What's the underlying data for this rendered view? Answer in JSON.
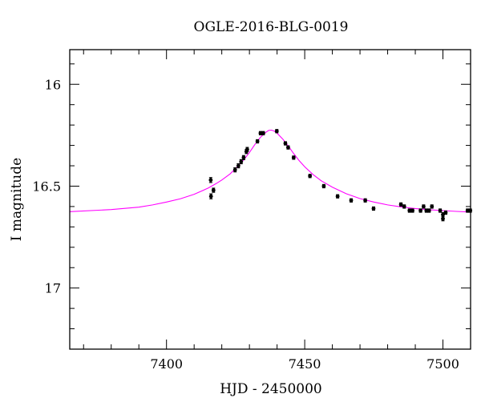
{
  "chart_data": {
    "type": "scatter",
    "title": "OGLE-2016-BLG-0019",
    "xlabel": "HJD - 2450000",
    "ylabel": "I magnitude",
    "xlim": [
      7365,
      7510
    ],
    "ylim": [
      17.3,
      15.83
    ],
    "y_inverted": true,
    "x_ticks": [
      7400,
      7450,
      7500
    ],
    "y_ticks": [
      16,
      16.5,
      17
    ],
    "x_minor_step": 10,
    "y_minor_step": 0.1,
    "grid": false,
    "legend": "none",
    "series": [
      {
        "style": "points-with-errorbars",
        "color": "#000000",
        "points": [
          {
            "x": 7416.0,
            "y": 16.47,
            "err": 0.012
          },
          {
            "x": 7416.1,
            "y": 16.55,
            "err": 0.012
          },
          {
            "x": 7417.0,
            "y": 16.52,
            "err": 0.01
          },
          {
            "x": 7424.8,
            "y": 16.42,
            "err": 0.01
          },
          {
            "x": 7426.0,
            "y": 16.4,
            "err": 0.01
          },
          {
            "x": 7427.0,
            "y": 16.38,
            "err": 0.01
          },
          {
            "x": 7427.9,
            "y": 16.36,
            "err": 0.01
          },
          {
            "x": 7428.9,
            "y": 16.33,
            "err": 0.01
          },
          {
            "x": 7429.2,
            "y": 16.32,
            "err": 0.01
          },
          {
            "x": 7432.9,
            "y": 16.28,
            "err": 0.008
          },
          {
            "x": 7434.0,
            "y": 16.24,
            "err": 0.008
          },
          {
            "x": 7435.0,
            "y": 16.24,
            "err": 0.008
          },
          {
            "x": 7439.9,
            "y": 16.23,
            "err": 0.008
          },
          {
            "x": 7443.0,
            "y": 16.29,
            "err": 0.008
          },
          {
            "x": 7444.0,
            "y": 16.31,
            "err": 0.008
          },
          {
            "x": 7446.0,
            "y": 16.36,
            "err": 0.008
          },
          {
            "x": 7451.9,
            "y": 16.45,
            "err": 0.008
          },
          {
            "x": 7456.9,
            "y": 16.5,
            "err": 0.008
          },
          {
            "x": 7461.9,
            "y": 16.55,
            "err": 0.008
          },
          {
            "x": 7466.8,
            "y": 16.57,
            "err": 0.008
          },
          {
            "x": 7471.9,
            "y": 16.57,
            "err": 0.008
          },
          {
            "x": 7474.9,
            "y": 16.61,
            "err": 0.008
          },
          {
            "x": 7484.8,
            "y": 16.59,
            "err": 0.008
          },
          {
            "x": 7486.0,
            "y": 16.6,
            "err": 0.008
          },
          {
            "x": 7487.9,
            "y": 16.62,
            "err": 0.008
          },
          {
            "x": 7489.0,
            "y": 16.62,
            "err": 0.008
          },
          {
            "x": 7491.9,
            "y": 16.62,
            "err": 0.008
          },
          {
            "x": 7493.0,
            "y": 16.6,
            "err": 0.008
          },
          {
            "x": 7494.0,
            "y": 16.62,
            "err": 0.008
          },
          {
            "x": 7495.0,
            "y": 16.62,
            "err": 0.008
          },
          {
            "x": 7496.0,
            "y": 16.6,
            "err": 0.008
          },
          {
            "x": 7499.0,
            "y": 16.62,
            "err": 0.008
          },
          {
            "x": 7500.0,
            "y": 16.64,
            "err": 0.01
          },
          {
            "x": 7500.0,
            "y": 16.66,
            "err": 0.01
          },
          {
            "x": 7501.0,
            "y": 16.63,
            "err": 0.008
          },
          {
            "x": 7508.9,
            "y": 16.62,
            "err": 0.008
          },
          {
            "x": 7509.9,
            "y": 16.62,
            "err": 0.008
          }
        ]
      },
      {
        "style": "line",
        "color": "#ff00ff",
        "points": [
          [
            7365,
            16.625
          ],
          [
            7380,
            16.615
          ],
          [
            7390,
            16.603
          ],
          [
            7395,
            16.592
          ],
          [
            7400,
            16.578
          ],
          [
            7405,
            16.562
          ],
          [
            7410,
            16.54
          ],
          [
            7415,
            16.51
          ],
          [
            7418,
            16.487
          ],
          [
            7420,
            16.47
          ],
          [
            7423,
            16.44
          ],
          [
            7426,
            16.4
          ],
          [
            7428,
            16.37
          ],
          [
            7430,
            16.335
          ],
          [
            7432,
            16.295
          ],
          [
            7434,
            16.26
          ],
          [
            7436,
            16.235
          ],
          [
            7437,
            16.226
          ],
          [
            7438,
            16.225
          ],
          [
            7439,
            16.23
          ],
          [
            7440,
            16.24
          ],
          [
            7442,
            16.268
          ],
          [
            7444,
            16.302
          ],
          [
            7446,
            16.34
          ],
          [
            7448,
            16.375
          ],
          [
            7450,
            16.405
          ],
          [
            7453,
            16.443
          ],
          [
            7456,
            16.474
          ],
          [
            7460,
            16.505
          ],
          [
            7465,
            16.537
          ],
          [
            7470,
            16.561
          ],
          [
            7475,
            16.578
          ],
          [
            7480,
            16.592
          ],
          [
            7485,
            16.602
          ],
          [
            7490,
            16.61
          ],
          [
            7495,
            16.616
          ],
          [
            7500,
            16.62
          ],
          [
            7505,
            16.624
          ],
          [
            7510,
            16.627
          ]
        ]
      }
    ]
  }
}
